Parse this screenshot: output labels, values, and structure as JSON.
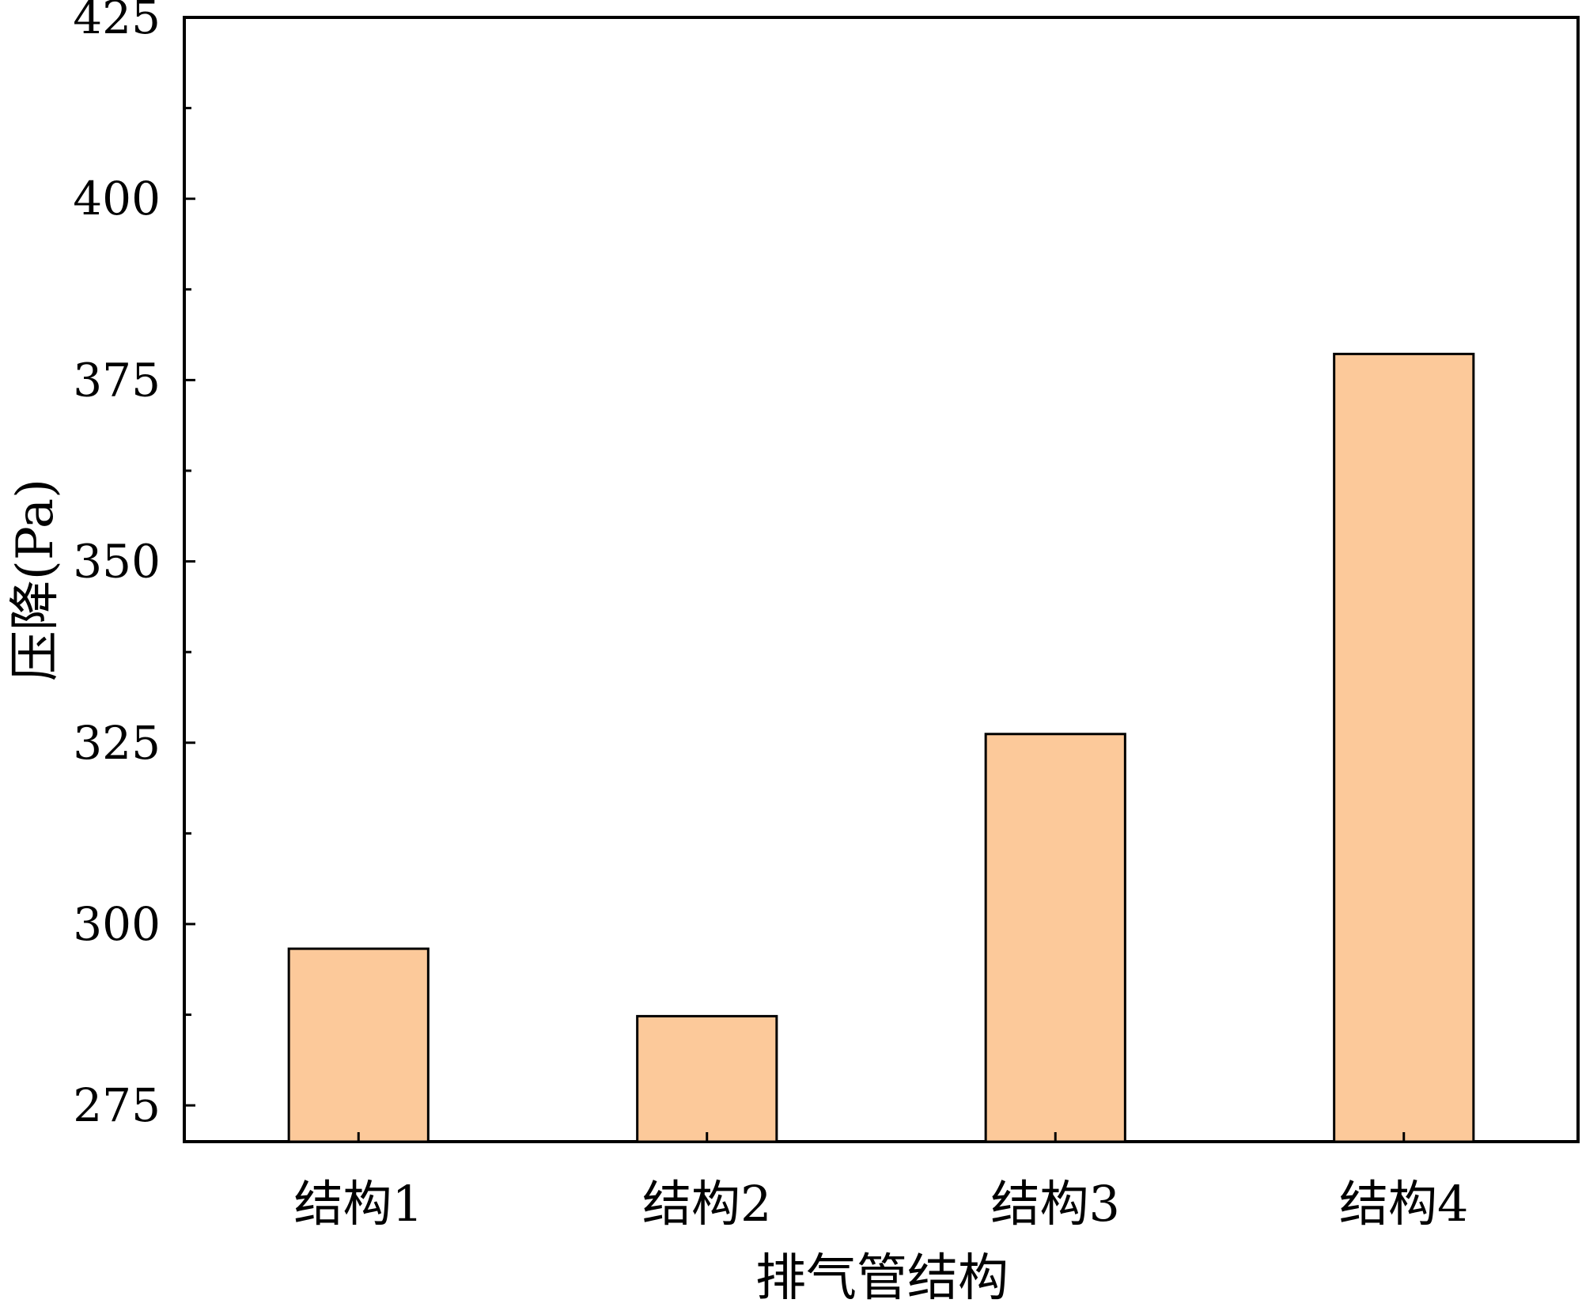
{
  "chart_data": {
    "type": "bar",
    "title": "",
    "xlabel": "排气管结构",
    "ylabel": "压降(Pa)",
    "categories": [
      "结构1",
      "结构2",
      "结构3",
      "结构4"
    ],
    "series": [
      {
        "values": [
          296.6,
          287.3,
          326.2,
          378.6
        ]
      }
    ],
    "ylim": [
      270,
      425
    ],
    "yticks": [
      275,
      300,
      325,
      350,
      375,
      400,
      425
    ],
    "ytick_labels": [
      "275",
      "300",
      "325",
      "350",
      "375",
      "400",
      "425"
    ],
    "grid": false,
    "legend": "none",
    "colors": {
      "bar_fill": "#FCC99A",
      "bar_stroke": "#000000",
      "axis": "#000000"
    }
  }
}
